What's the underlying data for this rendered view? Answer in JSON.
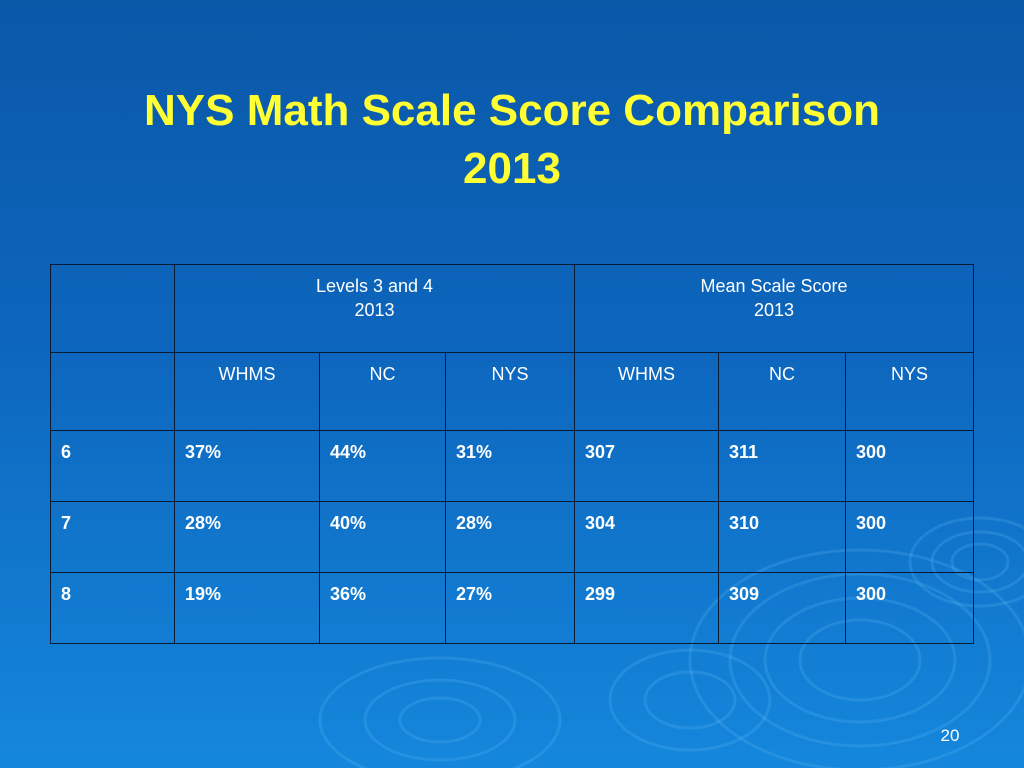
{
  "slide": {
    "title_line1": "NYS Math Scale Score Comparison",
    "title_line2": "2013",
    "page_number": "20"
  },
  "table": {
    "groups": [
      {
        "label": "Levels 3 and 4",
        "year": "2013"
      },
      {
        "label": "Mean Scale Score",
        "year": "2013"
      }
    ],
    "subheaders": [
      "WHMS",
      "NC",
      "NYS",
      "WHMS",
      "NC",
      "NYS"
    ],
    "rows": [
      {
        "grade": "6",
        "cells": [
          "37%",
          "44%",
          "31%",
          "307",
          "311",
          "300"
        ]
      },
      {
        "grade": "7",
        "cells": [
          "28%",
          "40%",
          "28%",
          "304",
          "310",
          "300"
        ]
      },
      {
        "grade": "8",
        "cells": [
          "19%",
          "36%",
          "27%",
          "299",
          "309",
          "300"
        ]
      }
    ]
  },
  "colors": {
    "background_top": "#0a58a8",
    "background_bottom": "#1487dc",
    "title": "#ffff33",
    "text": "#ffffff",
    "border": "#0a1a33"
  }
}
